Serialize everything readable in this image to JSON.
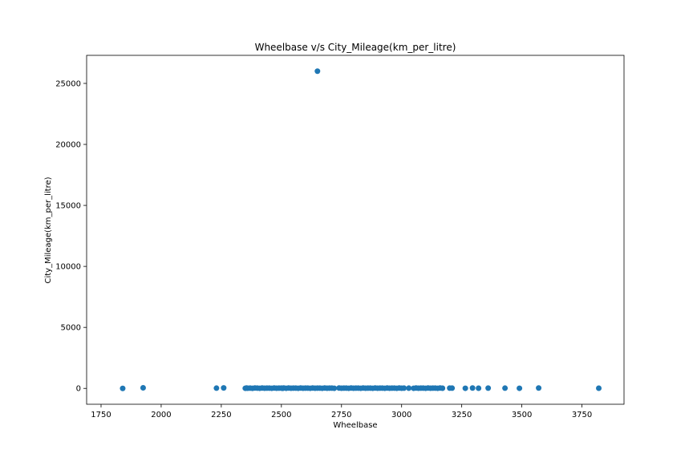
{
  "chart_data": {
    "type": "scatter",
    "title": "Wheelbase v/s City_Mileage(km_per_litre)",
    "xlabel": "Wheelbase",
    "ylabel": "City_Mileage(km_per_litre)",
    "xlim": [
      1690,
      3925
    ],
    "ylim": [
      -1300,
      27300
    ],
    "xticks": [
      1750,
      2000,
      2250,
      2500,
      2750,
      3000,
      3250,
      3500,
      3750
    ],
    "yticks": [
      0,
      5000,
      10000,
      15000,
      20000,
      25000
    ],
    "grid": false,
    "color": "#1f77b4",
    "series": [
      {
        "x": [
          1840,
          1925,
          2230,
          2260,
          2350,
          2355,
          2360,
          2370,
          2380,
          2390,
          2400,
          2410,
          2420,
          2430,
          2440,
          2450,
          2460,
          2470,
          2480,
          2490,
          2500,
          2505,
          2510,
          2520,
          2530,
          2540,
          2550,
          2560,
          2570,
          2580,
          2590,
          2600,
          2610,
          2620,
          2630,
          2640,
          2650,
          2660,
          2670,
          2680,
          2690,
          2700,
          2710,
          2720,
          2740,
          2750,
          2760,
          2770,
          2780,
          2790,
          2800,
          2810,
          2820,
          2830,
          2840,
          2850,
          2860,
          2870,
          2880,
          2890,
          2900,
          2910,
          2920,
          2930,
          2940,
          2950,
          2960,
          2970,
          2980,
          2990,
          3000,
          3010,
          3030,
          3050,
          3060,
          3070,
          3080,
          3090,
          3100,
          3110,
          3120,
          3130,
          3140,
          3150,
          3160,
          3170,
          3200,
          3210,
          3265,
          3295,
          3320,
          3360,
          3430,
          3490,
          3570,
          3820,
          2650
        ],
        "y": [
          0,
          50,
          20,
          40,
          10,
          30,
          15,
          25,
          5,
          35,
          20,
          10,
          30,
          15,
          25,
          20,
          10,
          30,
          15,
          25,
          20,
          5,
          35,
          10,
          30,
          15,
          25,
          20,
          10,
          30,
          15,
          25,
          20,
          10,
          30,
          15,
          25,
          20,
          10,
          30,
          15,
          25,
          20,
          10,
          30,
          15,
          25,
          20,
          10,
          30,
          15,
          25,
          20,
          10,
          30,
          15,
          25,
          20,
          10,
          30,
          15,
          25,
          20,
          10,
          30,
          15,
          25,
          20,
          10,
          30,
          15,
          25,
          20,
          10,
          30,
          15,
          25,
          20,
          10,
          30,
          15,
          25,
          20,
          10,
          30,
          15,
          25,
          20,
          10,
          30,
          15,
          25,
          20,
          10,
          30,
          15,
          26000
        ]
      }
    ]
  }
}
